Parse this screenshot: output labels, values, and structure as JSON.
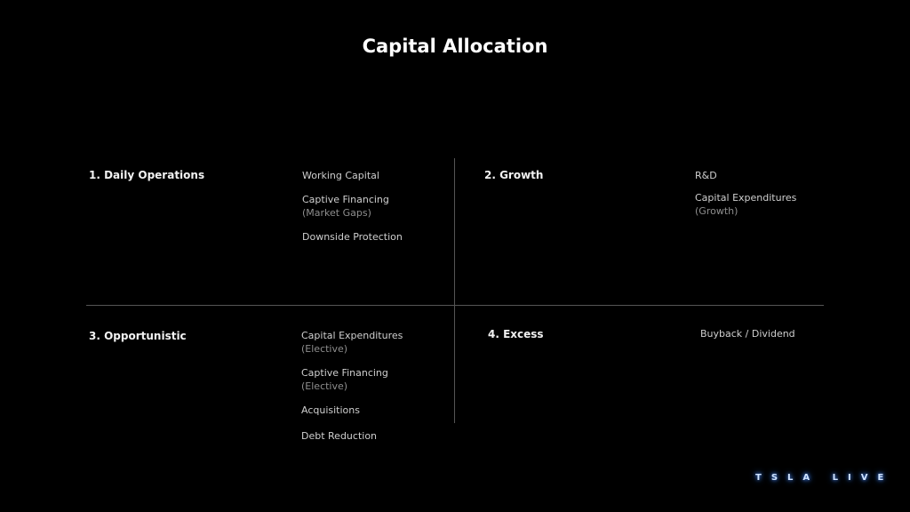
{
  "title": "Capital Allocation",
  "quadrants": [
    {
      "heading": "1. Daily Operations",
      "items": [
        {
          "label": "Working Capital"
        },
        {
          "label": "Captive Financing",
          "sub": "(Market Gaps)"
        },
        {
          "label": "Downside Protection"
        }
      ]
    },
    {
      "heading": "2. Growth",
      "items": [
        {
          "label": "R&D"
        },
        {
          "label": "Capital Expenditures",
          "sub": "(Growth)"
        }
      ]
    },
    {
      "heading": "3. Opportunistic",
      "items": [
        {
          "label": "Capital Expenditures",
          "sub": "(Elective)"
        },
        {
          "label": "Captive Financing",
          "sub": "(Elective)"
        },
        {
          "label": "Acquisitions"
        },
        {
          "label": "Debt Reduction"
        }
      ]
    },
    {
      "heading": "4. Excess",
      "items": [
        {
          "label": "Buyback / Dividend"
        }
      ]
    }
  ],
  "logo": "TSLA LIVE"
}
